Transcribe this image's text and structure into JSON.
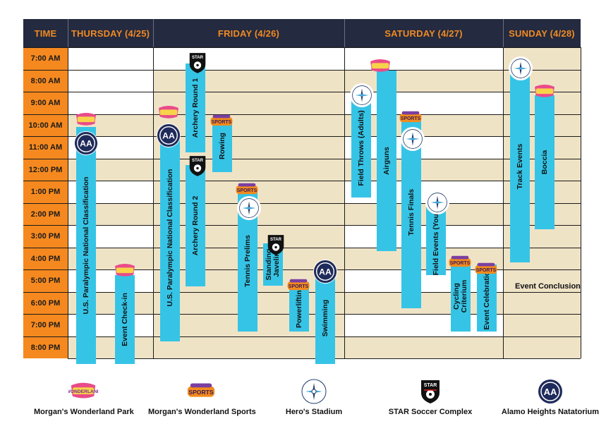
{
  "header": {
    "time": "TIME",
    "days": [
      "THURSDAY (4/25)",
      "FRIDAY (4/26)",
      "SATURDAY (4/27)",
      "SUNDAY (4/28)"
    ]
  },
  "times": [
    "7:00 AM",
    "8:00 AM",
    "9:00 AM",
    "10:00 AM",
    "11:00 AM",
    "12:00 PM",
    "1:00 PM",
    "2:00 PM",
    "3:00 PM",
    "4:00 PM",
    "5:00 PM",
    "6:00 PM",
    "7:00 PM",
    "8:00 PM"
  ],
  "events": {
    "thu_classification": "U.S. Paralympic National Classification",
    "thu_checkin": "Event Check-in",
    "fri_classification": "U.S. Paralympic National Classification",
    "fri_archery1": "Archery Round 1",
    "fri_archery2": "Archery Round 2",
    "fri_rowing": "Rowing",
    "fri_tennis_prelims": "Tennis Prelims",
    "fri_javelin_1": "Standing",
    "fri_javelin_2": "Javelin",
    "fri_powerlifting": "Powerlifting",
    "fri_swimming": "Swimming",
    "sat_field_throws": "Field Throws (Adults)",
    "sat_airguns": "Airguns",
    "sat_tennis_finals": "Tennis Finals",
    "sat_field_events": "Field Events (Youth)",
    "sat_cycling_1": "Cycling",
    "sat_cycling_2": "Criterium",
    "sat_event_celebration": "Event Celebration",
    "sun_track": "Track Events",
    "sun_boccia": "Boccia",
    "sun_conclusion": "Event Conclusion"
  },
  "legend": [
    {
      "label": "Morgan's Wonderland Park",
      "icon": "wonderland-park-logo"
    },
    {
      "label": "Morgan's Wonderland Sports",
      "icon": "wonderland-sports-logo"
    },
    {
      "label": "Hero's Stadium",
      "icon": "north-east-compass-logo"
    },
    {
      "label": "STAR Soccer Complex",
      "icon": "star-soccer-shield-logo"
    },
    {
      "label": "Alamo Heights Natatorium",
      "icon": "aa-circle-logo"
    }
  ],
  "colors": {
    "header_bg": "#242a3f",
    "header_text": "#f08a24",
    "time_col": "#f5891f",
    "event_bar": "#36c4e6",
    "shaded_row": "#efe3c6"
  }
}
